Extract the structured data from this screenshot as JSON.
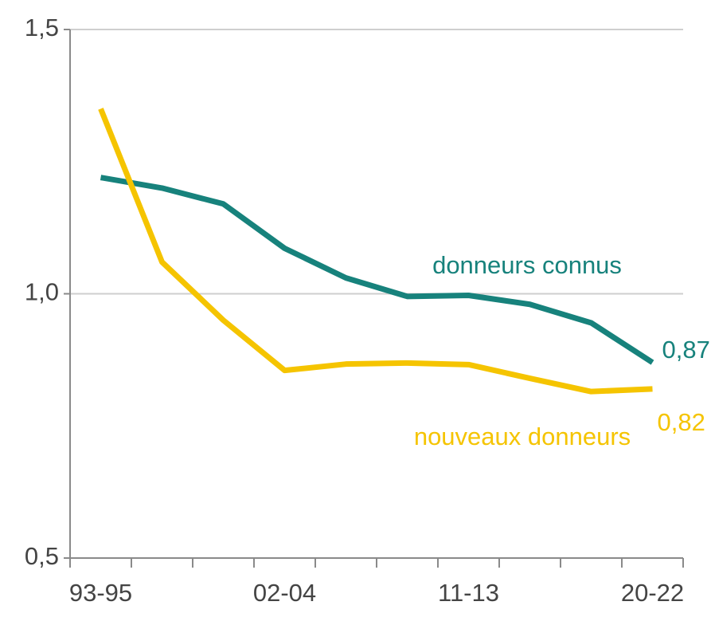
{
  "chart_data": {
    "type": "line",
    "categories": [
      "93-95",
      null,
      null,
      "02-04",
      null,
      null,
      "11-13",
      null,
      null,
      "20-22"
    ],
    "series": [
      {
        "name": "donneurs connus",
        "color": "#17827c",
        "values": [
          1.22,
          1.2,
          1.17,
          1.086,
          1.03,
          0.995,
          0.997,
          0.98,
          0.945,
          0.87
        ],
        "value_labels": [
          null,
          null,
          null,
          null,
          null,
          null,
          null,
          null,
          null,
          "0,87"
        ]
      },
      {
        "name": "nouveaux donneurs",
        "color": "#f5c400",
        "values": [
          1.35,
          1.06,
          0.95,
          0.855,
          0.867,
          0.869,
          0.866,
          0.84,
          0.815,
          0.82
        ],
        "value_labels": [
          null,
          null,
          null,
          null,
          null,
          null,
          null,
          null,
          null,
          "0,82"
        ]
      }
    ],
    "ylim": [
      0.5,
      1.5
    ],
    "yticks": [
      {
        "value": 0.5,
        "label": "0,5"
      },
      {
        "value": 1.0,
        "label": "1,0"
      },
      {
        "value": 1.5,
        "label": "1,5"
      }
    ],
    "grid": true
  }
}
